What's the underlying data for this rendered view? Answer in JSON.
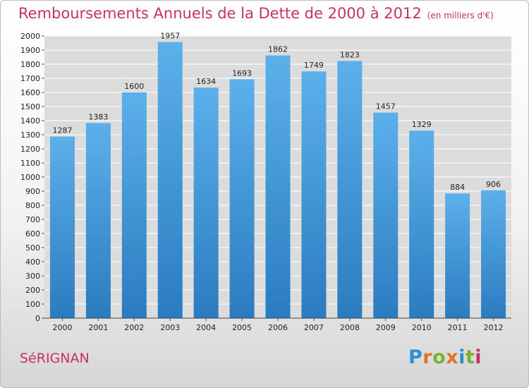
{
  "header": {
    "title": "Remboursements Annuels de la Dette de 2000 à 2012",
    "unit": "(en milliers d'€)"
  },
  "footer": {
    "city": "SéRIGNAN",
    "logo_letters": [
      "P",
      "r",
      "o",
      "x",
      "i",
      "t",
      "i"
    ],
    "logo_colors": [
      "#2e8fd0",
      "#e8702a",
      "#7bb32e",
      "#e8702a",
      "#2e8fd0",
      "#7bb32e",
      "#c8306a"
    ]
  },
  "colors": {
    "accent": "#c8306a",
    "bar_top": "#5cb0ea",
    "bar_bottom": "#2a7cc0",
    "grid": "#ffffff"
  },
  "chart_data": {
    "type": "bar",
    "title": "Remboursements Annuels de la Dette de 2000 à 2012",
    "xlabel": "",
    "ylabel": "",
    "categories": [
      "2000",
      "2001",
      "2002",
      "2003",
      "2004",
      "2005",
      "2006",
      "2007",
      "2008",
      "2009",
      "2010",
      "2011",
      "2012"
    ],
    "values": [
      1287,
      1383,
      1600,
      1957,
      1634,
      1693,
      1862,
      1749,
      1823,
      1457,
      1329,
      884,
      906
    ],
    "ylim": [
      0,
      2000
    ],
    "ytick_step": 100,
    "grid": true,
    "legend": "none"
  }
}
